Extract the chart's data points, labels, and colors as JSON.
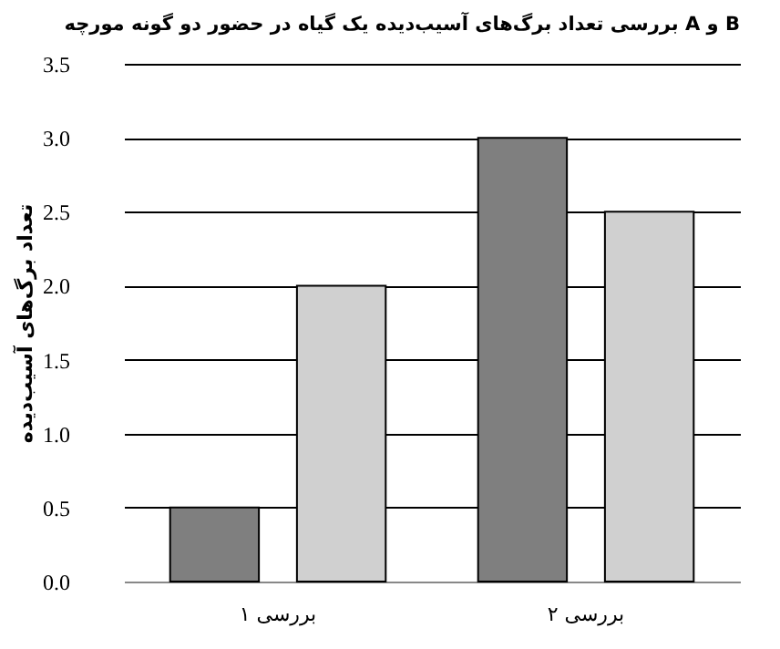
{
  "chart_data": {
    "type": "bar",
    "title": "بررسی تعداد برگ‌های آسیب‌دیده یک گیاه در حضور دو گونه مورچه A و B",
    "ylabel": "تعداد برگ‌های آسیب‌دیده",
    "categories": [
      "بررسی ۱",
      "بررسی ۲"
    ],
    "series": [
      {
        "color": "#7f7f7f",
        "values": [
          0.5,
          3.0
        ]
      },
      {
        "color": "#d0d0d0",
        "values": [
          2.0,
          2.5
        ]
      }
    ],
    "ylim": [
      0,
      3.5
    ],
    "yticks": [
      {
        "value": 0,
        "label": "0.0"
      },
      {
        "value": 0.5,
        "label": "0.5"
      },
      {
        "value": 1,
        "label": "1.0"
      },
      {
        "value": 1.5,
        "label": "1.5"
      },
      {
        "value": 2,
        "label": "2.0"
      },
      {
        "value": 2.5,
        "label": "2.5"
      },
      {
        "value": 3,
        "label": "3.0"
      },
      {
        "value": 3.5,
        "label": "3.5"
      }
    ],
    "grid": "y",
    "legend": false
  }
}
